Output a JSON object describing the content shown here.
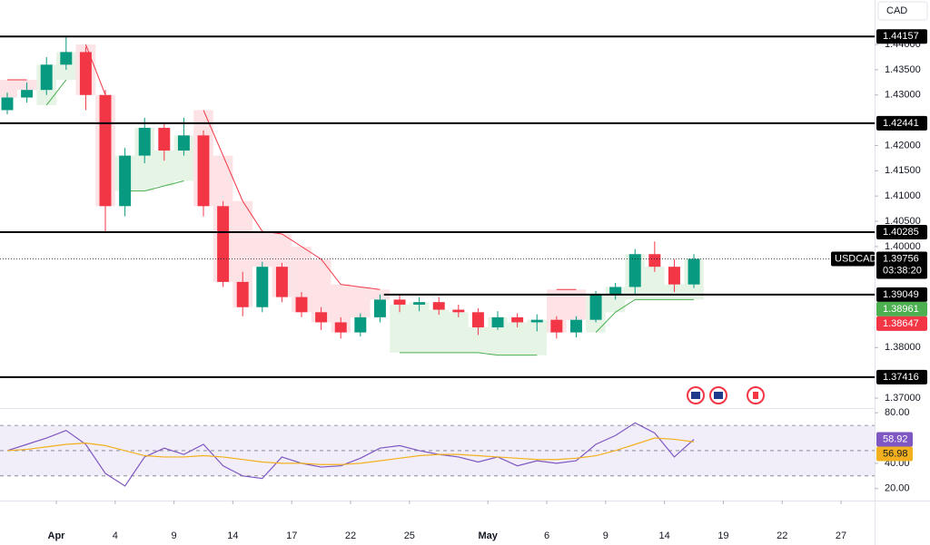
{
  "chart_data": [
    {
      "type": "candlestick",
      "currency": "CAD",
      "symbol": "USDCAD",
      "countdown": "03:38:20",
      "x": [
        -2.5,
        -1.5,
        -0.5,
        0.5,
        1.5,
        2.5,
        3.5,
        4.5,
        5.5,
        6.5,
        7.5,
        8.5,
        9.5,
        10.5,
        11.5,
        12.5,
        13.5,
        14.5,
        15.5,
        16.5,
        17.5,
        18.5,
        19.5,
        20.5,
        21.5,
        22.5,
        23.5,
        24.5,
        25.5,
        26.5,
        27.5,
        28.5,
        29.5,
        30.5,
        31.5,
        32.5
      ],
      "open": [
        1.427,
        1.4295,
        1.431,
        1.436,
        1.4385,
        1.43,
        1.408,
        1.418,
        1.4235,
        1.419,
        1.422,
        1.408,
        1.393,
        1.388,
        1.396,
        1.39,
        1.387,
        1.385,
        1.383,
        1.386,
        1.3895,
        1.3885,
        1.389,
        1.3875,
        1.387,
        1.384,
        1.386,
        1.385,
        1.3855,
        1.383,
        1.3855,
        1.3905,
        1.392,
        1.3985,
        1.396,
        1.3925
      ],
      "high": [
        1.4305,
        1.4325,
        1.4375,
        1.4416,
        1.4395,
        1.431,
        1.4195,
        1.4255,
        1.4245,
        1.4255,
        1.423,
        1.409,
        1.395,
        1.397,
        1.3968,
        1.391,
        1.388,
        1.386,
        1.3868,
        1.3905,
        1.3905,
        1.39,
        1.39,
        1.3885,
        1.3878,
        1.3872,
        1.3868,
        1.3866,
        1.3862,
        1.3862,
        1.3912,
        1.3928,
        1.3995,
        1.401,
        1.3975,
        1.3985
      ],
      "low": [
        1.4262,
        1.4285,
        1.43,
        1.435,
        1.427,
        1.403,
        1.406,
        1.4165,
        1.417,
        1.418,
        1.406,
        1.392,
        1.3862,
        1.387,
        1.389,
        1.386,
        1.3835,
        1.3818,
        1.3822,
        1.385,
        1.387,
        1.3872,
        1.3865,
        1.386,
        1.3825,
        1.3835,
        1.384,
        1.3832,
        1.3818,
        1.382,
        1.385,
        1.3895,
        1.3905,
        1.395,
        1.391,
        1.3918
      ],
      "close": [
        1.4295,
        1.431,
        1.436,
        1.4385,
        1.43,
        1.408,
        1.418,
        1.4235,
        1.419,
        1.422,
        1.408,
        1.393,
        1.388,
        1.396,
        1.39,
        1.387,
        1.385,
        1.383,
        1.386,
        1.3895,
        1.3885,
        1.389,
        1.3875,
        1.387,
        1.384,
        1.386,
        1.385,
        1.3855,
        1.383,
        1.3855,
        1.3905,
        1.392,
        1.3985,
        1.396,
        1.3925,
        1.39756
      ],
      "supertrend_upper": [
        1.433,
        1.433,
        null,
        null,
        1.44,
        1.43,
        null,
        null,
        null,
        null,
        1.427,
        1.418,
        1.409,
        1.403,
        1.4025,
        1.4,
        1.3975,
        1.3925,
        1.392,
        1.3915,
        null,
        null,
        null,
        null,
        null,
        null,
        null,
        null,
        1.3915,
        1.3915,
        null,
        null,
        null,
        null,
        null,
        null
      ],
      "supertrend_lower": [
        null,
        null,
        1.428,
        1.433,
        null,
        null,
        1.411,
        1.411,
        1.412,
        1.413,
        null,
        null,
        null,
        null,
        null,
        null,
        null,
        null,
        null,
        null,
        1.379,
        1.379,
        1.379,
        1.379,
        1.379,
        1.3785,
        1.3785,
        1.3785,
        null,
        null,
        1.383,
        1.387,
        1.3895,
        1.3895,
        1.3895,
        1.3895
      ],
      "colors": {
        "up": "#089981",
        "down": "#f23645"
      },
      "levels": [
        {
          "value": 1.44157
        },
        {
          "value": 1.42441
        },
        {
          "value": 1.40285
        },
        {
          "value": 1.39049,
          "start": 16.7
        },
        {
          "value": 1.37416
        }
      ],
      "last_price": 1.39756,
      "badges": [
        {
          "value": 1.38961,
          "color": "#4caf50"
        },
        {
          "value": 1.38647,
          "color": "#f23645"
        }
      ],
      "xlim": [
        -2.87,
        41.71
      ],
      "ylim": [
        1.36803,
        1.4488
      ],
      "xticks": [
        {
          "value": 0,
          "label": "Apr"
        },
        {
          "value": 3,
          "label": "4"
        },
        {
          "value": 6,
          "label": "9"
        },
        {
          "value": 9,
          "label": "14"
        },
        {
          "value": 12,
          "label": "17"
        },
        {
          "value": 15,
          "label": "22"
        },
        {
          "value": 18,
          "label": "25"
        },
        {
          "value": 22,
          "label": "May"
        },
        {
          "value": 25,
          "label": "6"
        },
        {
          "value": 28,
          "label": "9"
        },
        {
          "value": 31,
          "label": "14"
        },
        {
          "value": 34,
          "label": "19"
        },
        {
          "value": 37,
          "label": "22"
        },
        {
          "value": 40,
          "label": "27"
        }
      ],
      "yticks": [
        {
          "value": 1.44,
          "label": "1.44000"
        },
        {
          "value": 1.435,
          "label": "1.43500"
        },
        {
          "value": 1.43,
          "label": "1.43000"
        },
        {
          "value": 1.42,
          "label": "1.42000"
        },
        {
          "value": 1.415,
          "label": "1.41500"
        },
        {
          "value": 1.41,
          "label": "1.41000"
        },
        {
          "value": 1.405,
          "label": "1.40500"
        },
        {
          "value": 1.4,
          "label": "1.40000"
        },
        {
          "value": 1.38,
          "label": "1.38000"
        },
        {
          "value": 1.37,
          "label": "1.37000"
        }
      ]
    },
    {
      "type": "line",
      "series": [
        {
          "color": "#7e57c2",
          "values": [
            50,
            55,
            60,
            66,
            55,
            32,
            22,
            45,
            52,
            47,
            55,
            38,
            30,
            28,
            45,
            40,
            37,
            38,
            44,
            52,
            54,
            50,
            47,
            45,
            41,
            45,
            38,
            42,
            40,
            42,
            55,
            62,
            72,
            64,
            45,
            58.92
          ]
        },
        {
          "color": "#f2b01e",
          "values": [
            50,
            51,
            53,
            55,
            56,
            54,
            50,
            46,
            45,
            45,
            46,
            45,
            43,
            41,
            40,
            40,
            39,
            39,
            40,
            42,
            44,
            46,
            47,
            47,
            46,
            45,
            44,
            43,
            43,
            44,
            46,
            50,
            55,
            60,
            59,
            56.98
          ]
        }
      ],
      "ylim": [
        10.5,
        83.7
      ],
      "yticks": [
        {
          "value": 80,
          "label": "80.00"
        },
        {
          "value": 40,
          "label": "40.00"
        },
        {
          "value": 20,
          "label": "20.00"
        }
      ],
      "band": [
        30,
        70
      ],
      "midline": 50
    }
  ]
}
